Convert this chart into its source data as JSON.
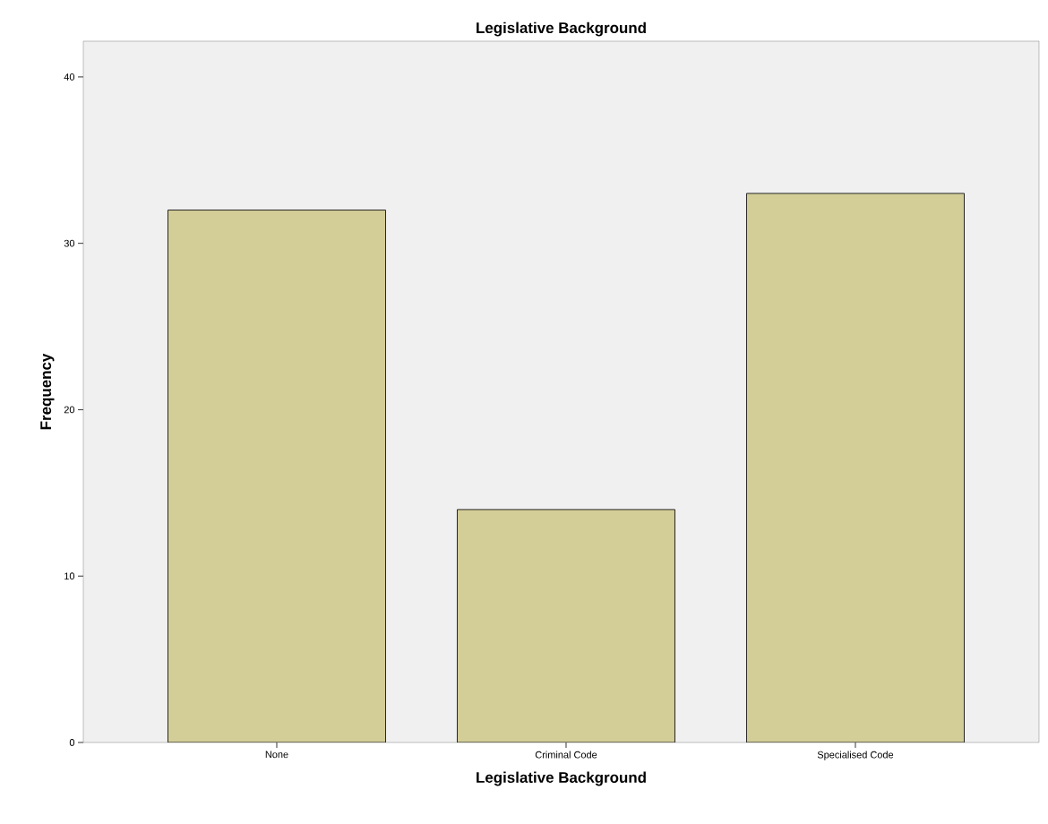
{
  "chart_data": {
    "type": "bar",
    "title": "Legislative Background",
    "xlabel": "Legislative Background",
    "ylabel": "Frequency",
    "categories": [
      "None",
      "Criminal Code",
      "Specialised Code"
    ],
    "values": [
      32,
      14,
      33
    ],
    "color": "#d3cd97",
    "ylim": [
      0,
      42.15
    ],
    "yticks": [
      0,
      10,
      20,
      30,
      40
    ]
  }
}
